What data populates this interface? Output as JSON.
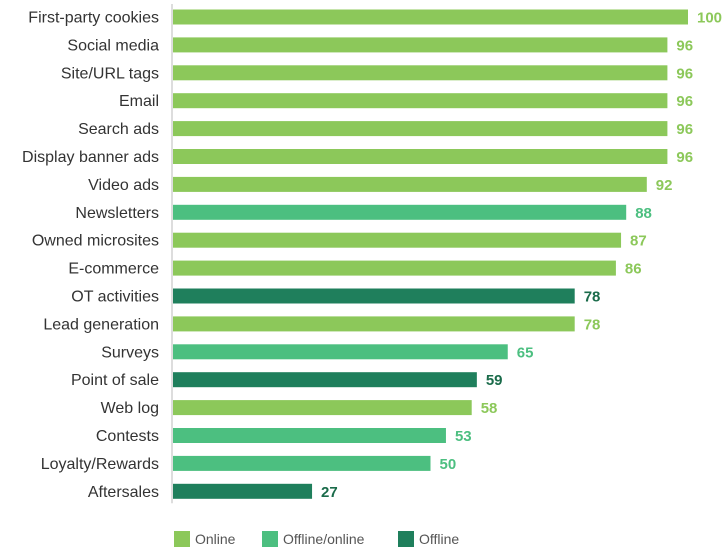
{
  "chart_data": {
    "type": "bar",
    "orientation": "horizontal",
    "categories": [
      "First-party cookies",
      "Social media",
      "Site/URL tags",
      "Email",
      "Search ads",
      "Display banner ads",
      "Video ads",
      "Newsletters",
      "Owned microsites",
      "E-commerce",
      "OT activities",
      "Lead generation",
      "Surveys",
      "Point of sale",
      "Web log",
      "Contests",
      "Loyalty/Rewards",
      "Aftersales"
    ],
    "values": [
      100,
      96,
      96,
      96,
      96,
      96,
      92,
      88,
      87,
      86,
      78,
      78,
      65,
      59,
      58,
      53,
      50,
      27
    ],
    "channel": [
      "Online",
      "Online",
      "Online",
      "Online",
      "Online",
      "Online",
      "Online",
      "Offline/online",
      "Online",
      "Online",
      "Offline",
      "Online",
      "Offline/online",
      "Offline",
      "Online",
      "Offline/online",
      "Offline/online",
      "Offline"
    ],
    "legend": [
      {
        "name": "Online",
        "color": "#8cc85a",
        "label_color": "#8cc85a"
      },
      {
        "name": "Offline/online",
        "color": "#4cbf80",
        "label_color": "#4cbf80"
      },
      {
        "name": "Offline",
        "color": "#1f7f5c",
        "label_color": "#1a6b4a"
      }
    ],
    "legend_position": "bottom",
    "xlim": [
      0,
      100
    ],
    "grid": false,
    "title": "",
    "xlabel": "",
    "ylabel": ""
  }
}
